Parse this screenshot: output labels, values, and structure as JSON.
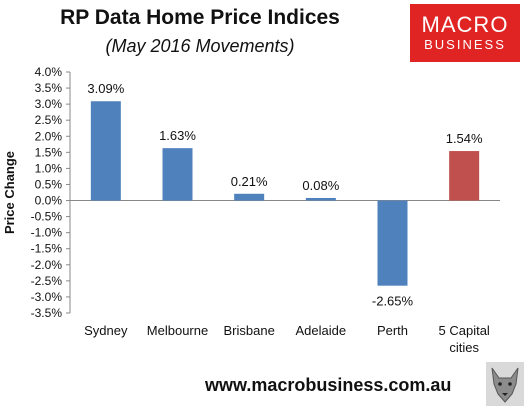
{
  "logo": {
    "line1": "MACRO",
    "line2": "BUSINESS",
    "color": "#e02424"
  },
  "footer": {
    "url": "www.macrobusiness.com.au"
  },
  "chart_data": {
    "type": "bar",
    "title": "RP Data Home Price Indices",
    "subtitle": "(May 2016 Movements)",
    "ylabel": "Price Change",
    "xlabel": "",
    "categories": [
      "Sydney",
      "Melbourne",
      "Brisbane",
      "Adelaide",
      "Perth",
      "5 Capital cities"
    ],
    "values": [
      3.09,
      1.63,
      0.21,
      0.08,
      -2.65,
      1.54
    ],
    "data_labels": [
      "3.09%",
      "1.63%",
      "0.21%",
      "0.08%",
      "-2.65%",
      "1.54%"
    ],
    "ylim": [
      -3.5,
      4.0
    ],
    "yticks": [
      4.0,
      3.5,
      3.0,
      2.5,
      2.0,
      1.5,
      1.0,
      0.5,
      0.0,
      -0.5,
      -1.0,
      -1.5,
      -2.0,
      -2.5,
      -3.0,
      -3.5
    ],
    "ytick_labels": [
      "4.0%",
      "3.5%",
      "3.0%",
      "2.5%",
      "2.0%",
      "1.5%",
      "1.0%",
      "0.5%",
      "0.0%",
      "-0.5%",
      "-1.0%",
      "-1.5%",
      "-2.0%",
      "-2.5%",
      "-3.0%",
      "-3.5%"
    ],
    "bar_colors": [
      "#4f81bd",
      "#4f81bd",
      "#4f81bd",
      "#4f81bd",
      "#4f81bd",
      "#c0504d"
    ],
    "grid": false,
    "legend": "none"
  }
}
